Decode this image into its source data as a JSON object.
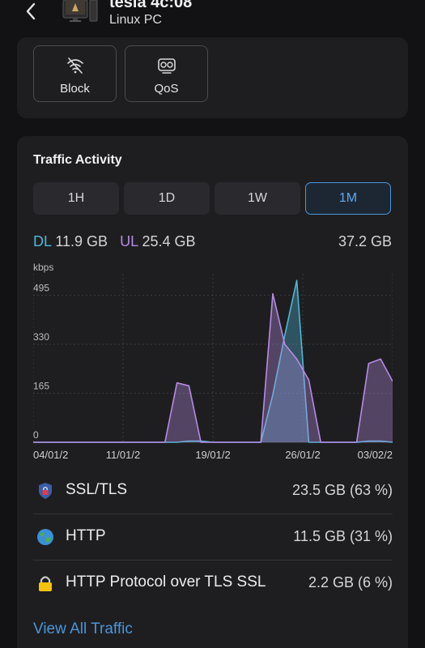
{
  "device": {
    "title": "tesla 4c:08",
    "subtitle": "Linux PC"
  },
  "actions": [
    {
      "label": "Block",
      "icon": "wifi-off-icon"
    },
    {
      "label": "QoS",
      "icon": "qos-icon"
    }
  ],
  "traffic": {
    "title": "Traffic Activity",
    "ranges": [
      "1H",
      "1D",
      "1W",
      "1M"
    ],
    "active_range": "1M",
    "dl_label": "DL",
    "dl_value": "11.9 GB",
    "ul_label": "UL",
    "ul_value": "25.4 GB",
    "total": "37.2 GB"
  },
  "chart_data": {
    "type": "area",
    "ylabel": "kbps",
    "yticks": [
      0,
      165,
      330,
      495
    ],
    "ylim": [
      0,
      540
    ],
    "xticks": [
      "04/01/2",
      "11/01/2",
      "19/01/2",
      "26/01/2",
      "03/02/2"
    ],
    "x": [
      0,
      1,
      2,
      3,
      4,
      5,
      6,
      7,
      8,
      9,
      10,
      11,
      12,
      13,
      14,
      15,
      16,
      17,
      18,
      19,
      20,
      21,
      22,
      23,
      24,
      25,
      26,
      27,
      28,
      29,
      30
    ],
    "series": [
      {
        "name": "DL",
        "color": "#4fb8d6",
        "values": [
          0,
          0,
          0,
          0,
          0,
          0,
          0,
          0,
          0,
          0,
          0,
          0,
          0,
          4,
          4,
          0,
          0,
          0,
          0,
          0,
          160,
          360,
          545,
          0,
          0,
          0,
          0,
          0,
          4,
          4,
          0
        ]
      },
      {
        "name": "UL",
        "color": "#b78be3",
        "values": [
          0,
          0,
          0,
          0,
          0,
          0,
          0,
          0,
          0,
          0,
          0,
          0,
          200,
          190,
          0,
          0,
          0,
          0,
          0,
          0,
          500,
          330,
          280,
          210,
          0,
          0,
          0,
          0,
          265,
          280,
          205
        ]
      }
    ],
    "grid": true
  },
  "protocols": [
    {
      "name": "SSL/TLS",
      "value": "23.5 GB (63 %)",
      "icon": "shield-lock-icon"
    },
    {
      "name": "HTTP",
      "value": "11.5 GB (31 %)",
      "icon": "globe-icon"
    },
    {
      "name": "HTTP Protocol over TLS SSL",
      "value": "2.2 GB (6 %)",
      "icon": "padlock-icon"
    }
  ],
  "view_all": "View All Traffic",
  "colors": {
    "accent": "#4b95d9",
    "download": "#4fb8d6",
    "upload": "#b78be3"
  }
}
